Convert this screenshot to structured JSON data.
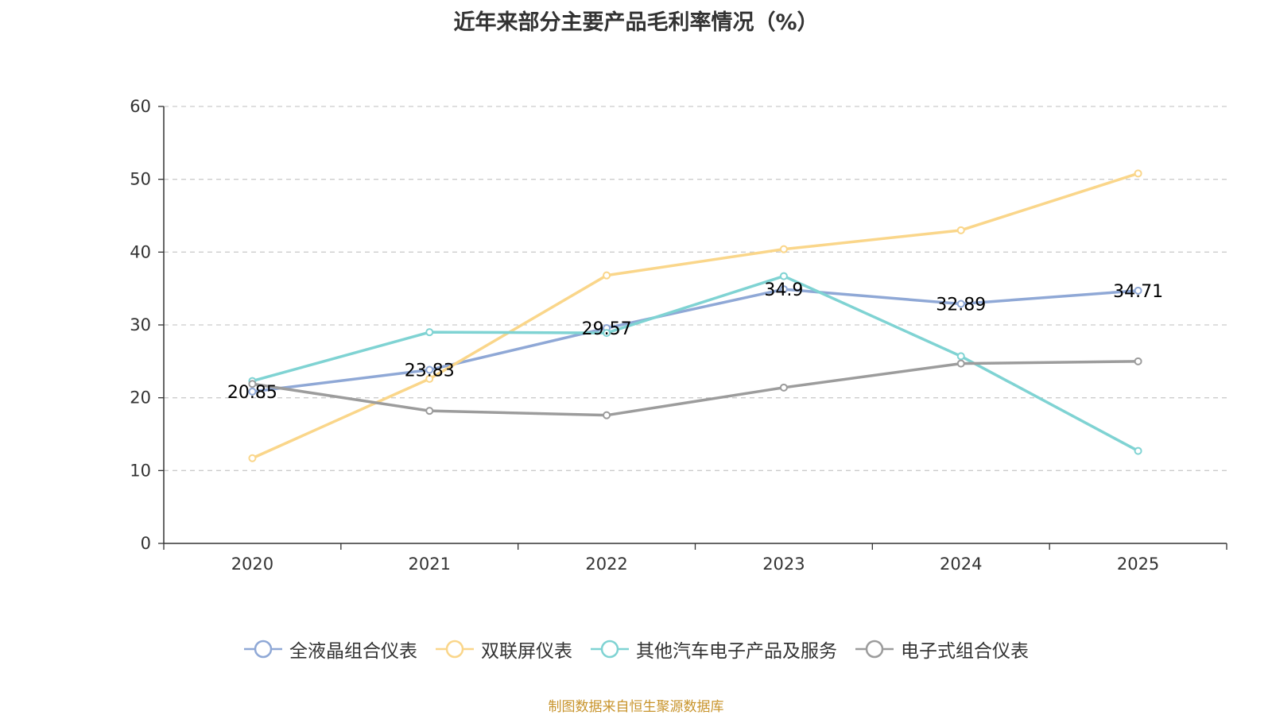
{
  "title": "近年来部分主要产品毛利率情况（%）",
  "source": "制图数据来自恒生聚源数据库",
  "colors": {
    "axis": "#333333",
    "grid": "#cccccc",
    "label": "#000000"
  },
  "chart_data": {
    "type": "line",
    "title": "近年来部分主要产品毛利率情况（%）",
    "xlabel": "",
    "ylabel": "",
    "ylim": [
      0,
      60
    ],
    "yticks": [
      "0",
      "10",
      "20",
      "30",
      "40",
      "50",
      "60"
    ],
    "categories": [
      "2020",
      "2021",
      "2022",
      "2023",
      "2024",
      "2025"
    ],
    "grid": "horizontal dashed",
    "legend_position": "bottom",
    "series": [
      {
        "name": "全液晶组合仪表",
        "color": "#8fa8d6",
        "values": [
          20.85,
          23.83,
          29.57,
          34.9,
          32.89,
          34.71
        ],
        "labels": [
          "20.85",
          "23.83",
          "29.57",
          "34.9",
          "32.89",
          "34.71"
        ]
      },
      {
        "name": "双联屏仪表",
        "color": "#fad68a",
        "values": [
          11.7,
          22.6,
          36.8,
          40.4,
          43.0,
          50.8
        ],
        "labels": []
      },
      {
        "name": "其他汽车电子产品及服务",
        "color": "#7fd3d3",
        "values": [
          22.3,
          29.0,
          28.9,
          36.7,
          25.7,
          12.7
        ],
        "labels": []
      },
      {
        "name": "电子式组合仪表",
        "color": "#9c9c9c",
        "values": [
          21.9,
          18.2,
          17.6,
          21.4,
          24.7,
          25.0
        ],
        "labels": []
      }
    ]
  }
}
